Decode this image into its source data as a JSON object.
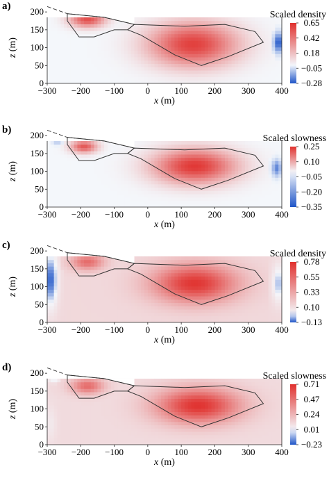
{
  "chart_data": [
    {
      "type": "heatmap",
      "panel_label": "a)",
      "colorbar_title": "Scaled density",
      "colorbar_ticks": [
        "0.65",
        "0.42",
        "0.18",
        "-0.05",
        "-0.28"
      ],
      "colorbar_range": [
        -0.28,
        0.65
      ],
      "xlabel": "x",
      "xlabel_unit": "(m)",
      "ylabel": "z",
      "ylabel_unit": "(m)",
      "xticks": [
        -300,
        -200,
        -100,
        0,
        100,
        200,
        300,
        400
      ],
      "yticks": [
        0,
        50,
        100,
        150,
        200
      ],
      "xlim": [
        -300,
        400
      ],
      "ylim": [
        0,
        210
      ],
      "anomalies": [
        {
          "cx": 135,
          "cz": 110,
          "rx": 150,
          "rz": 70,
          "value": 0.6
        },
        {
          "cx": -180,
          "cz": 180,
          "rx": 60,
          "rz": 25,
          "value": 0.55
        },
        {
          "cx": 390,
          "cz": 115,
          "rx": 15,
          "rz": 30,
          "value": -0.28
        }
      ]
    },
    {
      "type": "heatmap",
      "panel_label": "b)",
      "colorbar_title": "Scaled slowness",
      "colorbar_ticks": [
        "0.25",
        "0.10",
        "-0.05",
        "-0.20",
        "-0.35"
      ],
      "colorbar_range": [
        -0.35,
        0.25
      ],
      "xlabel": "x",
      "xlabel_unit": "(m)",
      "ylabel": "z",
      "ylabel_unit": "(m)",
      "xticks": [
        -300,
        -200,
        -100,
        0,
        100,
        200,
        300,
        400
      ],
      "yticks": [
        0,
        50,
        100,
        150,
        200
      ],
      "xlim": [
        -300,
        400
      ],
      "ylim": [
        0,
        210
      ],
      "anomalies": [
        {
          "cx": 140,
          "cz": 115,
          "rx": 140,
          "rz": 55,
          "value": 0.24
        },
        {
          "cx": -190,
          "cz": 170,
          "rx": 45,
          "rz": 20,
          "value": 0.2
        },
        {
          "cx": -270,
          "cz": 195,
          "rx": 15,
          "rz": 15,
          "value": -0.3
        },
        {
          "cx": 385,
          "cz": 110,
          "rx": 15,
          "rz": 25,
          "value": -0.25
        }
      ]
    },
    {
      "type": "heatmap",
      "panel_label": "c)",
      "colorbar_title": "Scaled density",
      "colorbar_ticks": [
        "0.78",
        "0.55",
        "0.33",
        "0.10",
        "-0.13"
      ],
      "colorbar_range": [
        -0.13,
        0.78
      ],
      "xlabel": "x",
      "xlabel_unit": "(m)",
      "ylabel": "z",
      "ylabel_unit": "(m)",
      "xticks": [
        -300,
        -200,
        -100,
        0,
        100,
        200,
        300,
        400
      ],
      "yticks": [
        0,
        50,
        100,
        150,
        200
      ],
      "xlim": [
        -300,
        400
      ],
      "ylim": [
        0,
        210
      ],
      "background_value": 0.12,
      "anomalies": [
        {
          "cx": 140,
          "cz": 110,
          "rx": 140,
          "rz": 60,
          "value": 0.76
        },
        {
          "cx": -180,
          "cz": 170,
          "rx": 55,
          "rz": 25,
          "value": 0.55
        },
        {
          "cx": -290,
          "cz": 120,
          "rx": 25,
          "rz": 90,
          "value": -0.12
        },
        {
          "cx": 390,
          "cz": 110,
          "rx": 20,
          "rz": 60,
          "value": -0.05
        }
      ]
    },
    {
      "type": "heatmap",
      "panel_label": "d)",
      "colorbar_title": "Scaled slowness",
      "colorbar_ticks": [
        "0.71",
        "0.47",
        "0.24",
        "0.01",
        "-0.23"
      ],
      "colorbar_range": [
        -0.23,
        0.71
      ],
      "xlabel": "x",
      "xlabel_unit": "(m)",
      "ylabel": "z",
      "ylabel_unit": "(m)",
      "xticks": [
        -300,
        -200,
        -100,
        0,
        100,
        200,
        300,
        400
      ],
      "yticks": [
        0,
        50,
        100,
        150,
        200
      ],
      "xlim": [
        -300,
        400
      ],
      "ylim": [
        0,
        210
      ],
      "background_value": 0.1,
      "anomalies": [
        {
          "cx": 150,
          "cz": 110,
          "rx": 140,
          "rz": 55,
          "value": 0.7
        },
        {
          "cx": -180,
          "cz": 165,
          "rx": 55,
          "rz": 25,
          "value": 0.5
        },
        {
          "cx": -280,
          "cz": 195,
          "rx": 20,
          "rz": 15,
          "value": -0.22
        },
        {
          "cx": -290,
          "cz": 60,
          "rx": 20,
          "rz": 60,
          "value": 0.05
        }
      ]
    }
  ],
  "outline": {
    "main_body": [
      [
        -40,
        165
      ],
      [
        110,
        160
      ],
      [
        230,
        165
      ],
      [
        320,
        145
      ],
      [
        345,
        115
      ],
      [
        240,
        75
      ],
      [
        160,
        50
      ],
      [
        80,
        80
      ],
      [
        -20,
        135
      ],
      [
        -60,
        150
      ]
    ],
    "small_body": [
      [
        -240,
        195
      ],
      [
        -240,
        175
      ],
      [
        -205,
        130
      ],
      [
        -160,
        130
      ],
      [
        -100,
        150
      ],
      [
        -60,
        150
      ],
      [
        -40,
        165
      ],
      [
        -130,
        185
      ]
    ],
    "surface": [
      [
        -300,
        215
      ],
      [
        -240,
        195
      ],
      [
        -130,
        185
      ],
      [
        -40,
        165
      ]
    ]
  },
  "colors": {
    "low": "#1f55c8",
    "mid": "#f4f7fb",
    "high": "#e0312e",
    "outline": "#333333"
  }
}
